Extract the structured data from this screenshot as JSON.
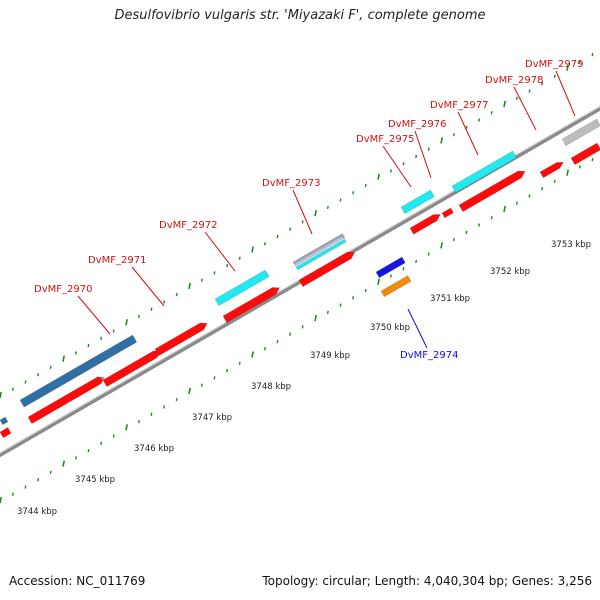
{
  "title": "Desulfovibrio vulgaris str. 'Miyazaki F', complete genome",
  "footer": {
    "accession": "Accession: NC_011769",
    "info": "Topology: circular; Length: 4,040,304 bp; Genes: 3,256"
  },
  "colors": {
    "forward_cds": "#2f6fa6",
    "cds_red": "#ff0a0a",
    "highlight_cyan": "#22e8f0",
    "reverse_blue": "#1515e0",
    "reverse_orange": "#f08a10",
    "grey_feature": "#bdbdbd",
    "backbone": "#8a8a8a",
    "tick_green": "#1f8a1f",
    "label_forward": "#d01010",
    "label_reverse": "#1010d0"
  },
  "scale": {
    "unit": "kbp",
    "ticks": [
      "3744 kbp",
      "3745 kbp",
      "3746 kbp",
      "3747 kbp",
      "3748 kbp",
      "3749 kbp",
      "3750 kbp",
      "3751 kbp",
      "3752 kbp",
      "3753 kbp"
    ]
  },
  "genes": [
    {
      "label": "DvMF_2970",
      "strand": "forward"
    },
    {
      "label": "DvMF_2971",
      "strand": "forward"
    },
    {
      "label": "DvMF_2972",
      "strand": "forward"
    },
    {
      "label": "DvMF_2973",
      "strand": "forward"
    },
    {
      "label": "DvMF_2974",
      "strand": "reverse"
    },
    {
      "label": "DvMF_2975",
      "strand": "forward"
    },
    {
      "label": "DvMF_2976",
      "strand": "forward"
    },
    {
      "label": "DvMF_2977",
      "strand": "forward"
    },
    {
      "label": "DvMF_2978",
      "strand": "forward"
    },
    {
      "label": "DvMF_2979",
      "strand": "forward"
    }
  ]
}
